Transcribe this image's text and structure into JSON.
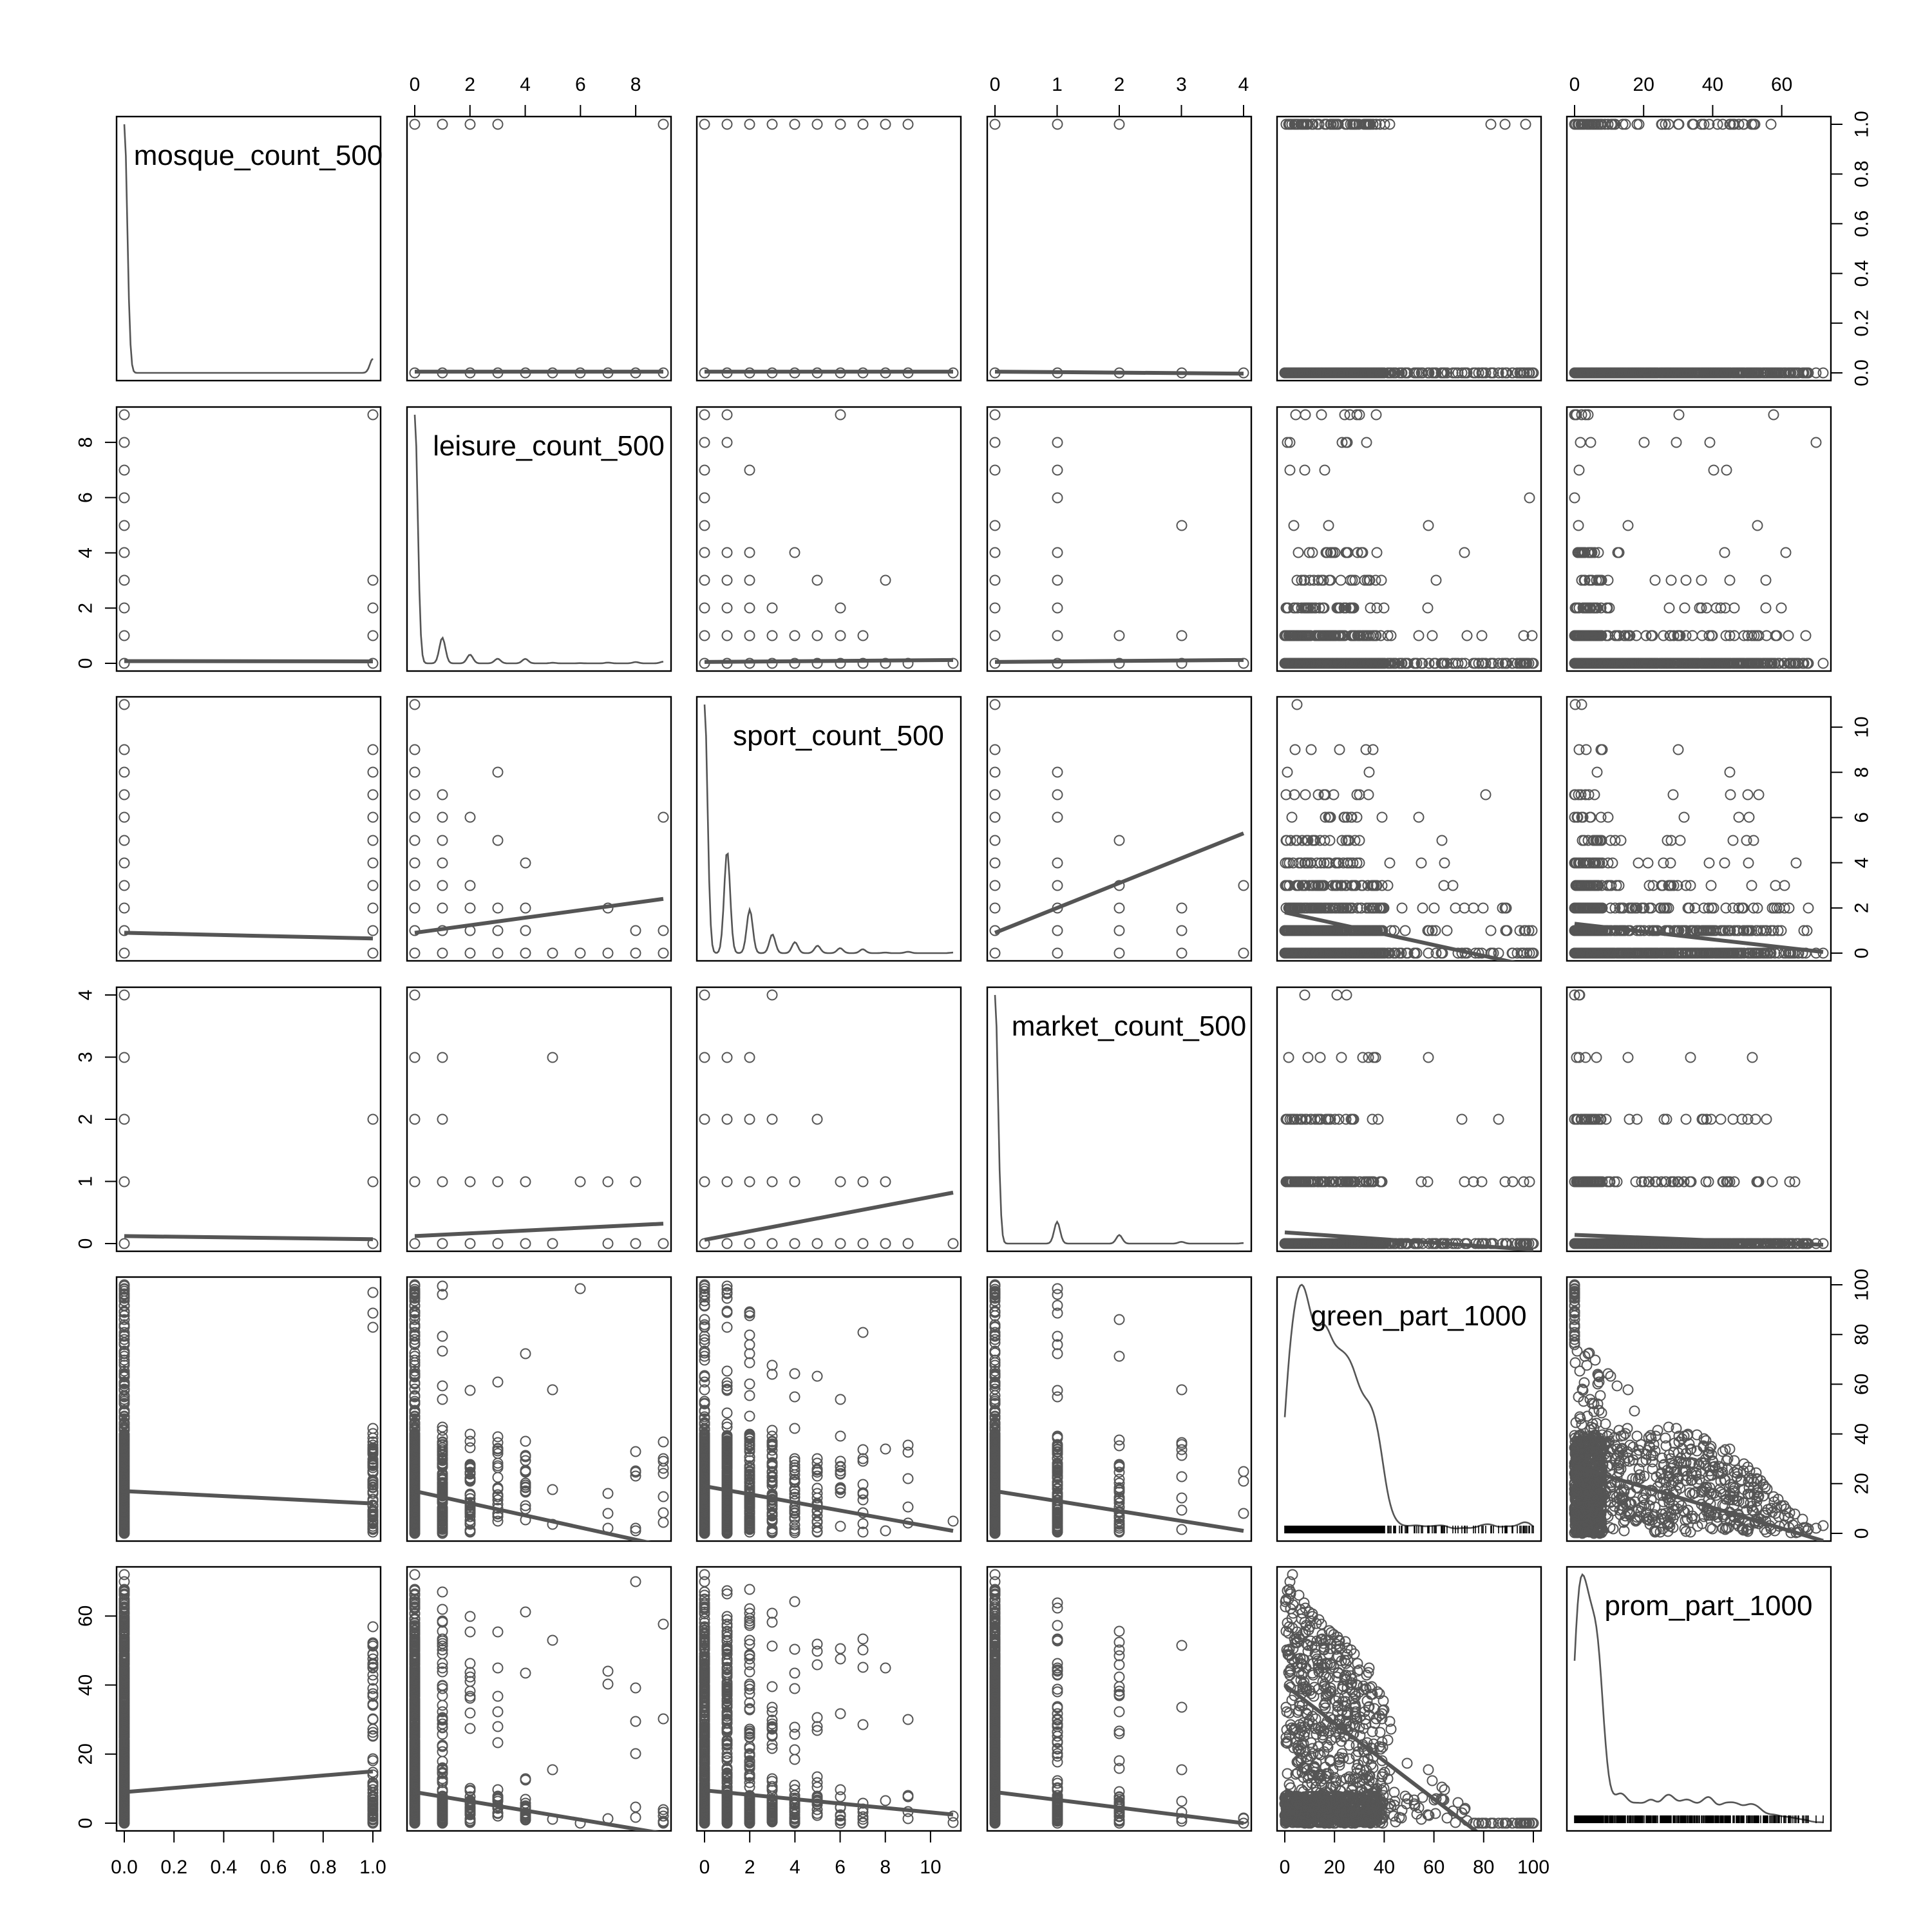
{
  "chart_data": {
    "type": "scatter",
    "title": "",
    "variables": [
      {
        "name": "mosque_count_500",
        "range": [
          0,
          1
        ],
        "ticks": [
          0.0,
          0.2,
          0.4,
          0.6,
          0.8,
          1.0
        ],
        "tick_labels": [
          "0.0",
          "0.2",
          "0.4",
          "0.6",
          "0.8",
          "1.0"
        ],
        "unique_values": [
          0,
          1
        ]
      },
      {
        "name": "leisure_count_500",
        "range": [
          0,
          9
        ],
        "ticks": [
          0,
          2,
          4,
          6,
          8
        ],
        "tick_labels": [
          "0",
          "2",
          "4",
          "6",
          "8"
        ],
        "unique_values": [
          0,
          1,
          2,
          3,
          4,
          5,
          6,
          7,
          8,
          9
        ]
      },
      {
        "name": "sport_count_500",
        "range": [
          0,
          11
        ],
        "ticks": [
          0,
          2,
          4,
          6,
          8,
          10
        ],
        "tick_labels": [
          "0",
          "2",
          "4",
          "6",
          "8",
          "10"
        ],
        "unique_values": [
          0,
          1,
          2,
          3,
          4,
          5,
          6,
          7,
          8,
          9,
          10,
          11
        ]
      },
      {
        "name": "market_count_500",
        "range": [
          0,
          4
        ],
        "ticks": [
          0,
          1,
          2,
          3,
          4
        ],
        "tick_labels": [
          "0",
          "1",
          "2",
          "3",
          "4"
        ],
        "unique_values": [
          0,
          1,
          2,
          3,
          4
        ]
      },
      {
        "name": "green_part_1000",
        "range": [
          0,
          100
        ],
        "ticks": [
          0,
          20,
          40,
          60,
          80,
          100
        ],
        "tick_labels": [
          "0",
          "20",
          "40",
          "60",
          "80",
          "100"
        ]
      },
      {
        "name": "prom_part_1000",
        "range": [
          0,
          72
        ],
        "ticks": [
          0,
          20,
          40,
          60
        ],
        "tick_labels": [
          "0",
          "20",
          "40",
          "60"
        ]
      }
    ],
    "regression_lines": [
      {
        "x": "leisure_count_500",
        "y": "mosque_count_500",
        "y_at_min": 0.005,
        "y_at_max": 0.005
      },
      {
        "x": "sport_count_500",
        "y": "mosque_count_500",
        "y_at_min": 0.005,
        "y_at_max": 0.005
      },
      {
        "x": "market_count_500",
        "y": "mosque_count_500",
        "y_at_min": 0.005,
        "y_at_max": -0.003
      },
      {
        "x": "mosque_count_500",
        "y": "leisure_count_500",
        "y_at_min": 0.08,
        "y_at_max": 0.07
      },
      {
        "x": "sport_count_500",
        "y": "leisure_count_500",
        "y_at_min": 0.05,
        "y_at_max": 0.12
      },
      {
        "x": "market_count_500",
        "y": "leisure_count_500",
        "y_at_min": 0.05,
        "y_at_max": 0.12
      },
      {
        "x": "mosque_count_500",
        "y": "sport_count_500",
        "y_at_min": 0.9,
        "y_at_max": 0.65
      },
      {
        "x": "leisure_count_500",
        "y": "sport_count_500",
        "y_at_min": 0.9,
        "y_at_max": 2.4
      },
      {
        "x": "market_count_500",
        "y": "sport_count_500",
        "y_at_min": 0.9,
        "y_at_max": 5.3
      },
      {
        "x": "green_part_1000",
        "y": "sport_count_500",
        "y_at_min": 1.8,
        "y_at_max": -0.6
      },
      {
        "x": "prom_part_1000",
        "y": "sport_count_500",
        "y_at_min": 1.3,
        "y_at_max": 0.05
      },
      {
        "x": "mosque_count_500",
        "y": "market_count_500",
        "y_at_min": 0.12,
        "y_at_max": 0.07
      },
      {
        "x": "leisure_count_500",
        "y": "market_count_500",
        "y_at_min": 0.12,
        "y_at_max": 0.32
      },
      {
        "x": "sport_count_500",
        "y": "market_count_500",
        "y_at_min": 0.06,
        "y_at_max": 0.82
      },
      {
        "x": "green_part_1000",
        "y": "market_count_500",
        "y_at_min": 0.18,
        "y_at_max": -0.1
      },
      {
        "x": "prom_part_1000",
        "y": "market_count_500",
        "y_at_min": 0.14,
        "y_at_max": -0.02
      },
      {
        "x": "mosque_count_500",
        "y": "green_part_1000",
        "y_at_min": 17,
        "y_at_max": 12
      },
      {
        "x": "leisure_count_500",
        "y": "green_part_1000",
        "y_at_min": 17,
        "y_at_max": -5
      },
      {
        "x": "sport_count_500",
        "y": "green_part_1000",
        "y_at_min": 19,
        "y_at_max": 1
      },
      {
        "x": "market_count_500",
        "y": "green_part_1000",
        "y_at_min": 17,
        "y_at_max": 1
      },
      {
        "x": "prom_part_1000",
        "y": "green_part_1000",
        "y_at_min": 27,
        "y_at_max": -3
      },
      {
        "x": "mosque_count_500",
        "y": "prom_part_1000",
        "y_at_min": 9,
        "y_at_max": 15
      },
      {
        "x": "leisure_count_500",
        "y": "prom_part_1000",
        "y_at_min": 9,
        "y_at_max": -3
      },
      {
        "x": "sport_count_500",
        "y": "prom_part_1000",
        "y_at_min": 9.5,
        "y_at_max": 2.5
      },
      {
        "x": "market_count_500",
        "y": "prom_part_1000",
        "y_at_min": 9,
        "y_at_max": 0
      },
      {
        "x": "green_part_1000",
        "y": "prom_part_1000",
        "y_at_min": 40,
        "y_at_max": -15
      }
    ]
  }
}
